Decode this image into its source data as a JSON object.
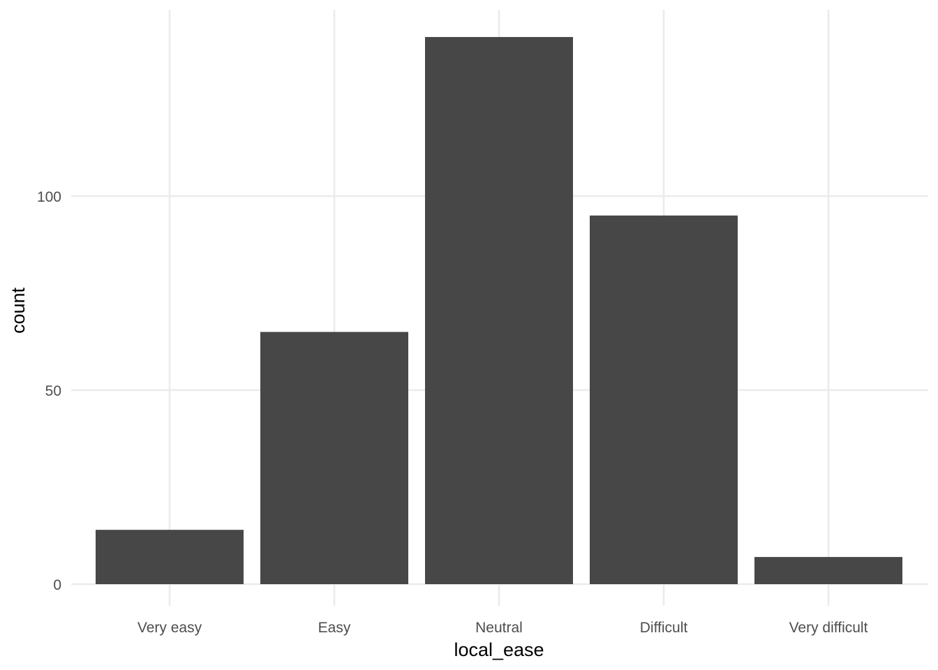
{
  "chart_data": {
    "type": "bar",
    "title": "",
    "xlabel": "local_ease",
    "ylabel": "count",
    "categories": [
      "Very easy",
      "Easy",
      "Neutral",
      "Difficult",
      "Very difficult"
    ],
    "values": [
      14,
      65,
      141,
      95,
      7
    ],
    "ylim": [
      0,
      147.5
    ],
    "yticks": [
      0,
      50,
      100
    ],
    "yticks_labels": [
      "0",
      "50",
      "100"
    ],
    "grid": true,
    "legend": "none",
    "colors": {
      "bar": "#474747",
      "grid": "#ebebeb",
      "background": "#ffffff"
    }
  }
}
